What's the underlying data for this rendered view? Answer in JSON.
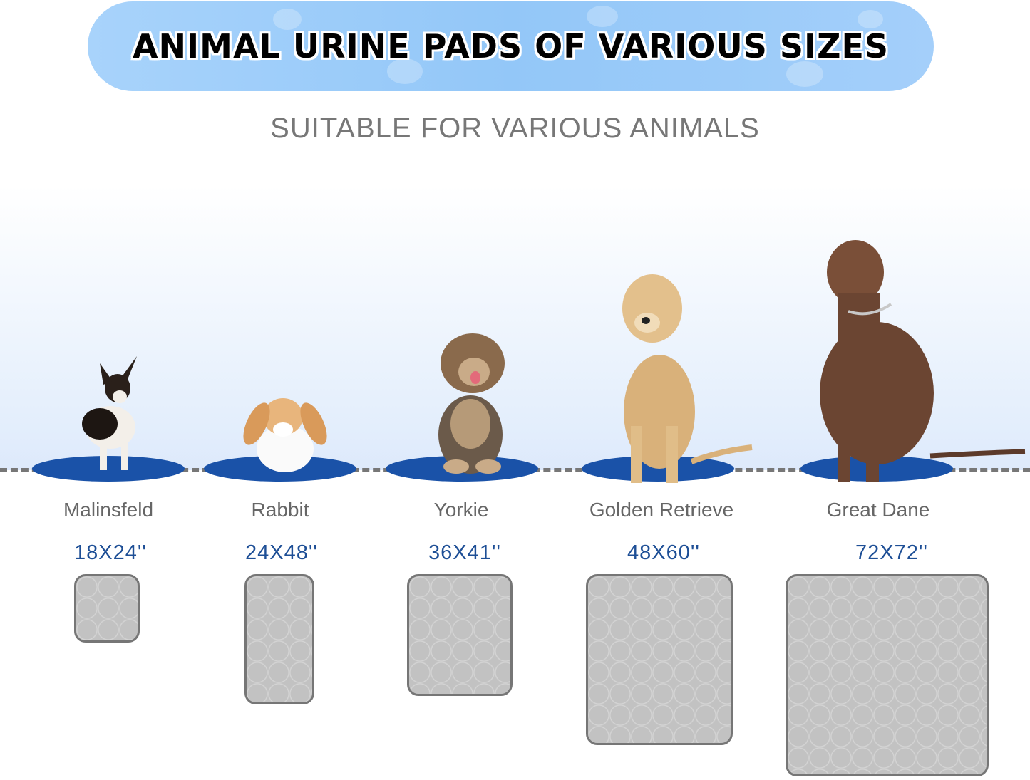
{
  "header": {
    "title": "ANIMAL URINE PADS OF VARIOUS SIZES",
    "subtitle": "SUITABLE FOR VARIOUS ANIMALS"
  },
  "colors": {
    "banner": "#a8d3fb",
    "pad_base": "#1a52a8",
    "size_text": "#1e4f96",
    "label_text": "#666666",
    "pad": "#c2c2c2"
  },
  "animals": [
    {
      "name": "Malinsfeld",
      "size": "18X24''",
      "icon": "chihuahua"
    },
    {
      "name": "Rabbit",
      "size": "24X48''",
      "icon": "rabbit"
    },
    {
      "name": "Yorkie",
      "size": "36X41''",
      "icon": "yorkie"
    },
    {
      "name": "Golden Retrieve",
      "size": "48X60''",
      "icon": "golden-retriever"
    },
    {
      "name": "Great Dane",
      "size": "72X72''",
      "icon": "great-dane"
    }
  ]
}
